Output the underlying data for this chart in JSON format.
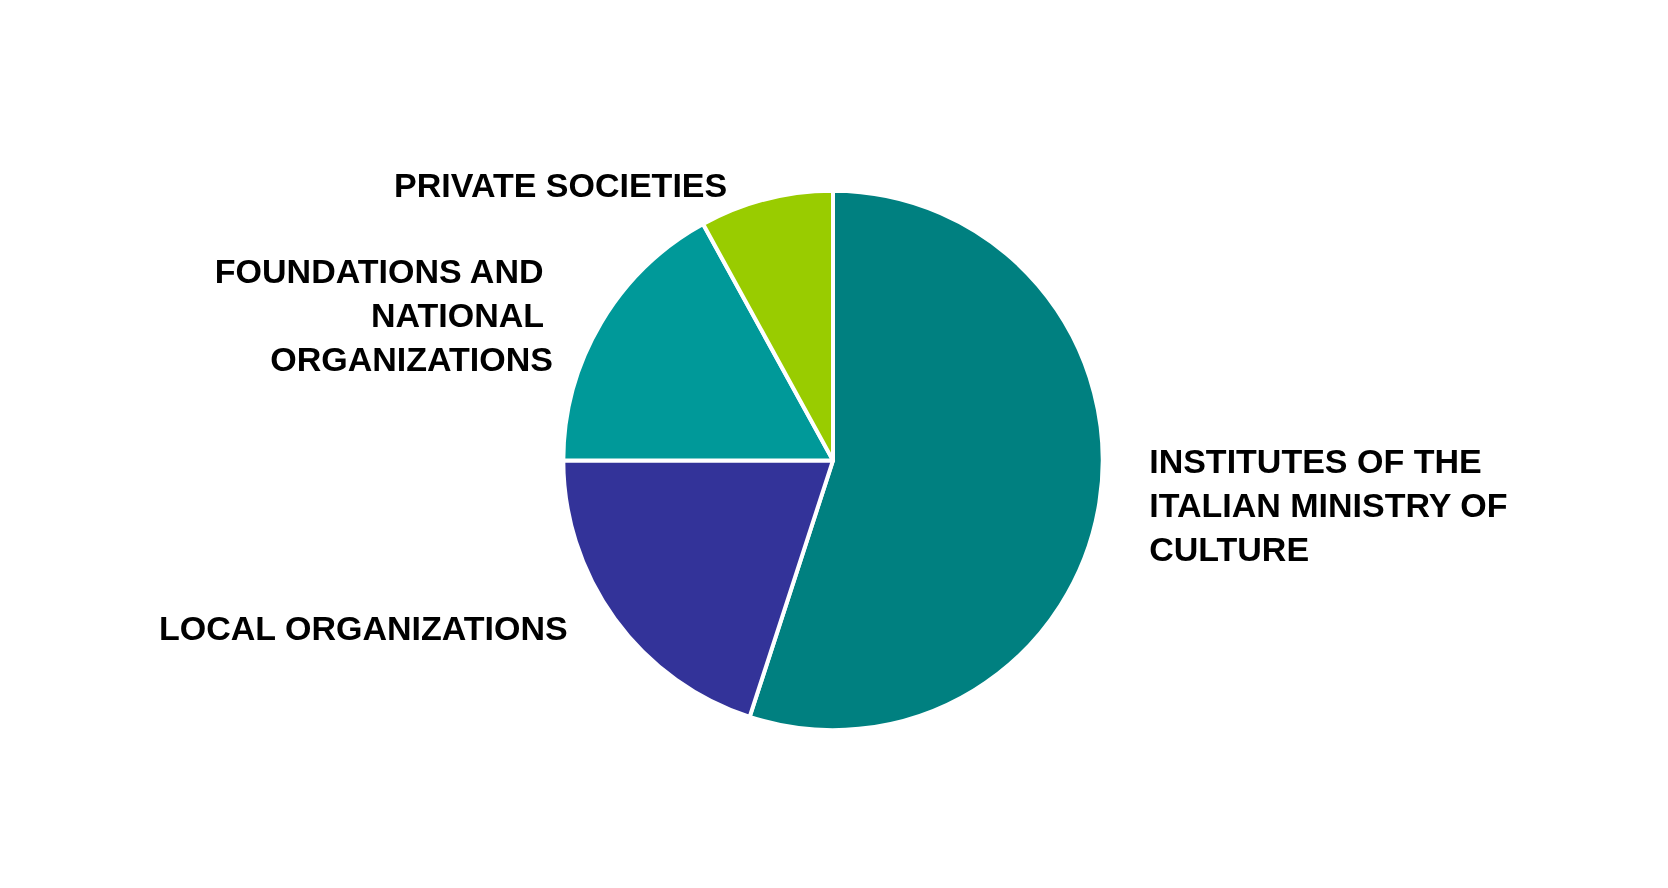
{
  "chart_data": {
    "type": "pie",
    "categories": [
      "INSTITUTES OF THE ITALIAN MINISTRY OF CULTURE",
      "LOCAL ORGANIZATIONS",
      "FOUNDATIONS AND NATIONAL ORGANIZATIONS",
      "PRIVATE SOCIETIES"
    ],
    "values": [
      55,
      20,
      17,
      8
    ],
    "colors": [
      "#008080",
      "#333399",
      "#009999",
      "#99cc00"
    ],
    "legend": false
  }
}
